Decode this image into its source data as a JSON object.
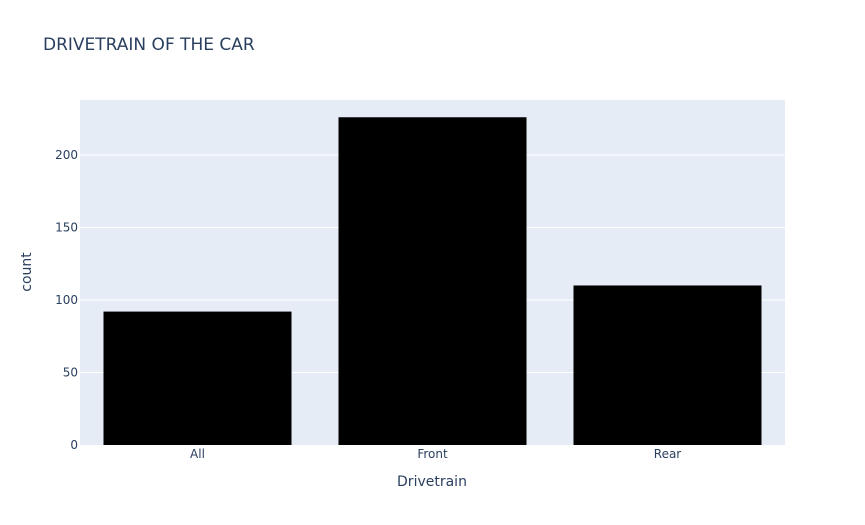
{
  "chart_data": {
    "type": "bar",
    "title": "DRIVETRAIN OF THE CAR",
    "xlabel": "Drivetrain",
    "ylabel": "count",
    "categories": [
      "All",
      "Front",
      "Rear"
    ],
    "values": [
      92,
      226,
      110
    ],
    "ylim": [
      0,
      237.9
    ],
    "yticks": [
      0,
      50,
      100,
      150,
      200
    ],
    "grid": true,
    "legend": "none",
    "colors": {
      "bar": "#000000",
      "plot_background": "#e5ecf6",
      "gridline": "#ffffff",
      "text": "#2a3f5f"
    }
  }
}
